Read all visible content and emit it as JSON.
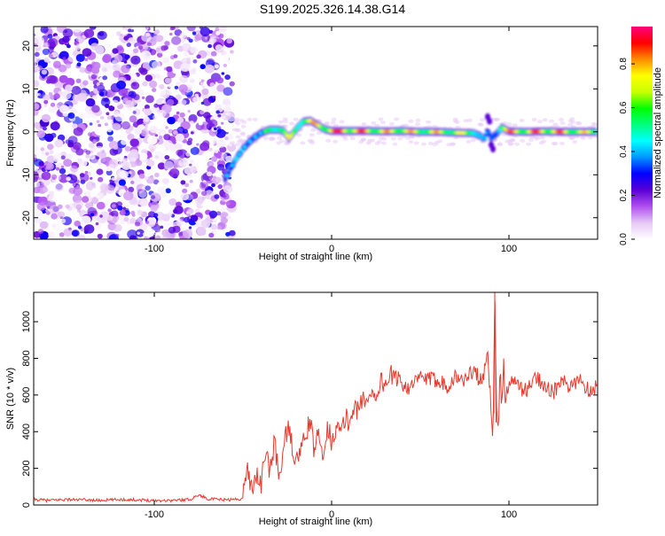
{
  "title": "S199.2025.326.14.38.G14",
  "chart_data": [
    {
      "type": "heatmap",
      "xlabel": "Height of straight line (km)",
      "ylabel": "Frequency (Hz)",
      "xlim": [
        -168,
        150
      ],
      "ylim": [
        -25,
        24.5
      ],
      "xticks": [
        -100,
        0,
        100
      ],
      "xtick_labels": [
        "-100",
        "0",
        "100"
      ],
      "yticks": [
        -20,
        -10,
        0,
        10,
        20
      ],
      "ytick_labels": [
        "-20",
        "-10",
        "0",
        "10",
        "20"
      ],
      "ridge": {
        "x": [
          -60,
          -55,
          -50,
          -45,
          -40,
          -35,
          -30,
          -27,
          -24,
          -20,
          -16,
          -12,
          -8,
          -4,
          0,
          10,
          20,
          30,
          40,
          50,
          60,
          70,
          80,
          84,
          86,
          88,
          90,
          93,
          96,
          100,
          110,
          120,
          130,
          140,
          150
        ],
        "y": [
          -11,
          -7,
          -4,
          -1.8,
          -0.3,
          0.5,
          0.5,
          0.2,
          -1.5,
          0.6,
          2.4,
          2.6,
          1.6,
          0.6,
          0.2,
          0.2,
          0.2,
          0.1,
          0.2,
          0.0,
          0.0,
          -0.2,
          -0.3,
          -1.0,
          -1.8,
          0.3,
          -1.4,
          -0.5,
          1.0,
          0.1,
          0.0,
          0.1,
          0.0,
          0.0,
          0.0
        ],
        "amplitude": [
          0.35,
          0.45,
          0.5,
          0.55,
          0.6,
          0.7,
          0.75,
          0.65,
          0.8,
          0.7,
          0.75,
          0.8,
          0.9,
          0.9,
          0.95,
          0.98,
          0.9,
          0.85,
          0.9,
          0.8,
          0.85,
          0.8,
          0.75,
          0.5,
          0.4,
          0.3,
          0.4,
          0.5,
          0.85,
          0.9,
          0.9,
          0.95,
          0.9,
          0.85,
          0.75
        ]
      },
      "noise_region": [
        -168,
        -56
      ],
      "colorbar": {
        "label": "Normalized spectral amplitude",
        "range": [
          0,
          0.97
        ],
        "ticks": [
          0.0,
          0.2,
          0.4,
          0.6,
          0.8
        ],
        "tick_labels": [
          "0.0",
          "0.2",
          "0.4",
          "0.6",
          "0.8"
        ],
        "colormap": [
          "#ffffff",
          "#e6c8f5",
          "#b050f0",
          "#5b00d6",
          "#0000ff",
          "#0096ff",
          "#00ffff",
          "#00ff80",
          "#00ff00",
          "#c8ff00",
          "#ffff00",
          "#ff8c00",
          "#ff0000",
          "#ff0080"
        ]
      }
    },
    {
      "type": "line",
      "xlabel": "Height of straight line (km)",
      "ylabel": "SNR (10 * v/v)",
      "xlim": [
        -168,
        150
      ],
      "ylim": [
        0,
        1160
      ],
      "xticks": [
        -100,
        0,
        100
      ],
      "xtick_labels": [
        "-100",
        "0",
        "100"
      ],
      "yticks": [
        0,
        200,
        400,
        600,
        800,
        1000
      ],
      "ytick_labels": [
        "0",
        "200",
        "400",
        "600",
        "800",
        "1000"
      ],
      "color": "#e83a2f",
      "series": [
        {
          "name": "SNR",
          "x": [
            -168,
            -160,
            -150,
            -140,
            -130,
            -120,
            -110,
            -100,
            -90,
            -80,
            -75,
            -70,
            -65,
            -60,
            -55,
            -50,
            -48,
            -45,
            -42,
            -40,
            -37,
            -35,
            -32,
            -30,
            -28,
            -25,
            -22,
            -20,
            -18,
            -15,
            -12,
            -10,
            -8,
            -5,
            -2,
            0,
            3,
            5,
            8,
            10,
            13,
            15,
            18,
            20,
            23,
            25,
            28,
            30,
            33,
            35,
            38,
            40,
            45,
            50,
            55,
            60,
            65,
            70,
            75,
            80,
            85,
            88,
            90,
            91,
            92,
            93,
            94,
            95,
            96,
            97,
            98,
            100,
            105,
            110,
            115,
            120,
            125,
            130,
            135,
            140,
            145,
            150
          ],
          "y": [
            30,
            25,
            30,
            28,
            25,
            30,
            28,
            25,
            25,
            30,
            55,
            35,
            30,
            28,
            30,
            35,
            210,
            90,
            180,
            100,
            300,
            180,
            350,
            150,
            250,
            420,
            320,
            220,
            300,
            350,
            480,
            280,
            380,
            300,
            420,
            350,
            440,
            380,
            480,
            440,
            560,
            500,
            600,
            540,
            640,
            590,
            680,
            650,
            720,
            680,
            700,
            660,
            640,
            700,
            680,
            690,
            650,
            700,
            680,
            740,
            660,
            820,
            520,
            380,
            1160,
            500,
            400,
            740,
            520,
            800,
            560,
            680,
            650,
            620,
            700,
            660,
            610,
            680,
            630,
            700,
            620,
            660
          ]
        }
      ]
    }
  ]
}
